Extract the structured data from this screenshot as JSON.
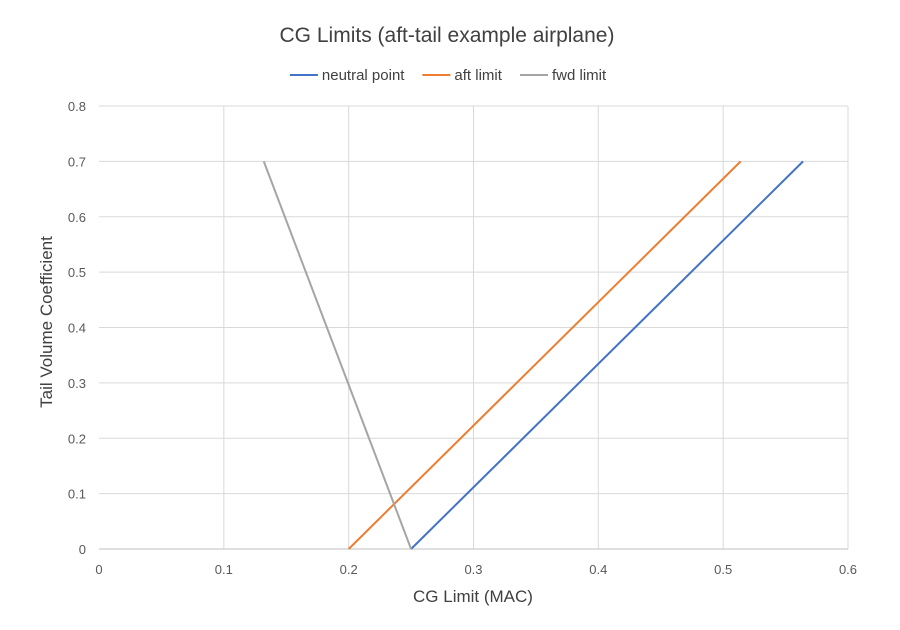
{
  "chart_data": {
    "type": "line",
    "title": "CG Limits (aft-tail example airplane)",
    "xlabel": "CG Limit (MAC)",
    "ylabel": "Tail Volume Coefficient",
    "xlim": [
      0,
      0.6
    ],
    "ylim": [
      0,
      0.8
    ],
    "xticks": [
      0,
      0.1,
      0.2,
      0.3,
      0.4,
      0.5,
      0.6
    ],
    "xtick_labels": [
      "0",
      "0.1",
      "0.2",
      "0.3",
      "0.4",
      "0.5",
      "0.6"
    ],
    "yticks": [
      0,
      0.1,
      0.2,
      0.3,
      0.4,
      0.5,
      0.6,
      0.7,
      0.8
    ],
    "ytick_labels": [
      "0",
      "0.1",
      "0.2",
      "0.3",
      "0.4",
      "0.5",
      "0.6",
      "0.7",
      "0.8"
    ],
    "grid": true,
    "legend_position": "top",
    "series": [
      {
        "name": "neutral point",
        "color": "#4472C4",
        "x": [
          0.25,
          0.564
        ],
        "y": [
          0,
          0.7
        ]
      },
      {
        "name": "aft limit",
        "color": "#ED7D31",
        "x": [
          0.2,
          0.514
        ],
        "y": [
          0,
          0.7
        ]
      },
      {
        "name": "fwd limit",
        "color": "#A5A5A5",
        "x": [
          0.25,
          0.132
        ],
        "y": [
          0,
          0.7
        ]
      }
    ]
  }
}
